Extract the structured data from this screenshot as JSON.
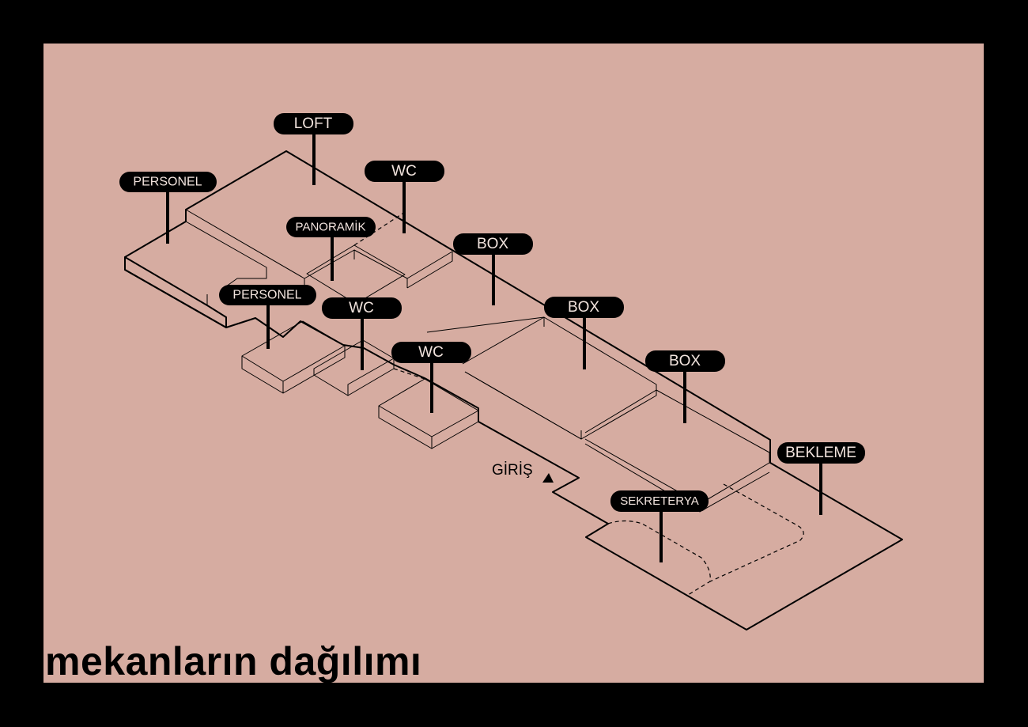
{
  "title": "mekanların dağılımı",
  "entry_label": "GİRİŞ",
  "labels": [
    {
      "id": "loft",
      "text": "LOFT"
    },
    {
      "id": "personel-1",
      "text": "PERSONEL"
    },
    {
      "id": "wc-1",
      "text": "WC"
    },
    {
      "id": "panoramik",
      "text": "PANORAMİK"
    },
    {
      "id": "box-1",
      "text": "BOX"
    },
    {
      "id": "personel-2",
      "text": "PERSONEL"
    },
    {
      "id": "wc-2",
      "text": "WC"
    },
    {
      "id": "box-2",
      "text": "BOX"
    },
    {
      "id": "wc-3",
      "text": "WC"
    },
    {
      "id": "box-3",
      "text": "BOX"
    },
    {
      "id": "bekleme",
      "text": "BEKLEME"
    },
    {
      "id": "sekreterya",
      "text": "SEKRETERYA"
    }
  ],
  "colors": {
    "frame": "#000000",
    "background": "#d6aca1",
    "tag": "#000000",
    "tag_text": "#f2e4de"
  }
}
